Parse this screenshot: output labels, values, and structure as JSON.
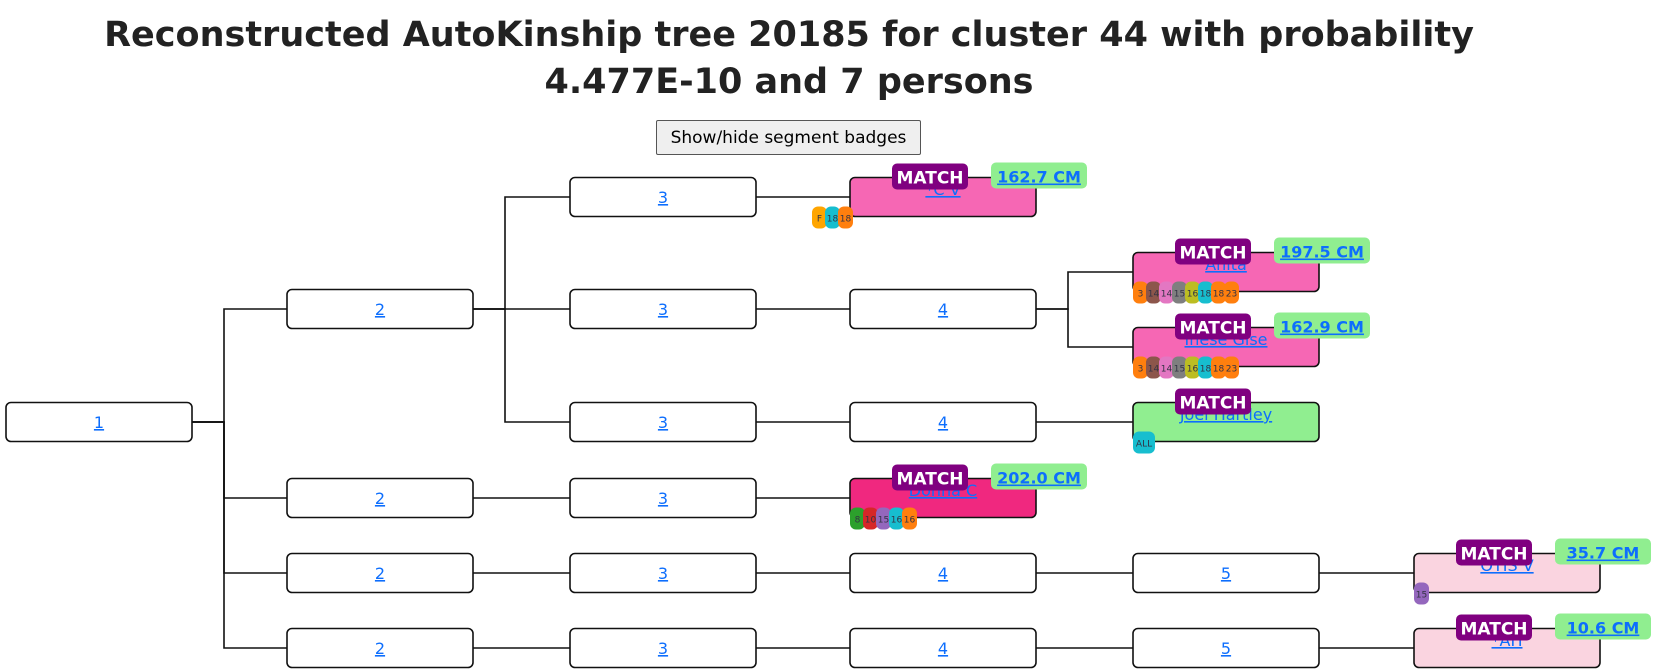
{
  "title": "Reconstructed AutoKinship tree 20185 for cluster 44 with probability 4.477E-10 and 7 persons",
  "button": "Show/hide segment badges",
  "nodes": [
    {
      "label": "1",
      "parent": null
    },
    {
      "label": "2",
      "parent": 0
    },
    {
      "label": "2",
      "parent": 0
    },
    {
      "label": "2",
      "parent": 0
    },
    {
      "label": "2",
      "parent": 0
    },
    {
      "label": "3",
      "parent": 1
    },
    {
      "label": "3",
      "parent": 1
    },
    {
      "label": "3",
      "parent": 1
    },
    {
      "label": "3",
      "parent": 2
    },
    {
      "label": "3",
      "parent": 3
    },
    {
      "label": "3",
      "parent": 4
    },
    {
      "label": "*C V",
      "parent": 5,
      "badge": "MATCH",
      "cm": "162.7 CM",
      "color": "#f667b4",
      "segments": [
        {
          "label": "F",
          "color": "#ffa500"
        },
        {
          "label": "18",
          "color": "#17becf"
        },
        {
          "label": "18",
          "color": "#ff7f0e"
        }
      ]
    },
    {
      "label": "4",
      "parent": 6
    },
    {
      "label": "4",
      "parent": 7
    },
    {
      "label": "Donna C",
      "parent": 8,
      "badge": "MATCH",
      "cm": "202.0 CM",
      "color": "#f0287f",
      "segments": [
        {
          "label": "8",
          "color": "#2ca02c"
        },
        {
          "label": "10",
          "color": "#d62728"
        },
        {
          "label": "15",
          "color": "#9467bd"
        },
        {
          "label": "16",
          "color": "#17becf"
        },
        {
          "label": "16",
          "color": "#ff7f0e"
        }
      ]
    },
    {
      "label": "4",
      "parent": 9
    },
    {
      "label": "4",
      "parent": 10
    },
    {
      "label": "Anita",
      "parent": 12,
      "badge": "MATCH",
      "cm": "197.5 CM",
      "color": "#f667b4",
      "segments": [
        {
          "label": "3",
          "color": "#ff7f0e"
        },
        {
          "label": "14",
          "color": "#8c564b"
        },
        {
          "label": "14",
          "color": "#e377c2"
        },
        {
          "label": "15",
          "color": "#7f7f7f"
        },
        {
          "label": "16",
          "color": "#bcbd22"
        },
        {
          "label": "18",
          "color": "#17becf"
        },
        {
          "label": "18",
          "color": "#ff7f0e"
        },
        {
          "label": "23",
          "color": "#ff7f0e"
        }
      ]
    },
    {
      "label": "Inese Gise",
      "parent": 12,
      "badge": "MATCH",
      "cm": "162.9 CM",
      "color": "#f667b4",
      "segments": [
        {
          "label": "3",
          "color": "#ff7f0e"
        },
        {
          "label": "14",
          "color": "#8c564b"
        },
        {
          "label": "14",
          "color": "#e377c2"
        },
        {
          "label": "15",
          "color": "#7f7f7f"
        },
        {
          "label": "16",
          "color": "#bcbd22"
        },
        {
          "label": "18",
          "color": "#17becf"
        },
        {
          "label": "18",
          "color": "#ff7f0e"
        },
        {
          "label": "23",
          "color": "#ff7f0e"
        }
      ]
    },
    {
      "label": "Joel Hartley",
      "parent": 13,
      "badge": "MATCH",
      "color": "#90ee90",
      "segments": [
        {
          "label": "ALL",
          "color": "#17becf"
        }
      ]
    },
    {
      "label": "5",
      "parent": 15
    },
    {
      "label": "5",
      "parent": 16
    },
    {
      "label": "OTIS V",
      "parent": 20,
      "badge": "MATCH",
      "cm": "35.7 CM",
      "color": "#fad4e0",
      "segments": [
        {
          "label": "15",
          "color": "#9467bd"
        }
      ]
    },
    {
      "label": "*AH",
      "parent": 21,
      "badge": "MATCH",
      "cm": "10.6 CM",
      "color": "#fad4e0"
    }
  ]
}
